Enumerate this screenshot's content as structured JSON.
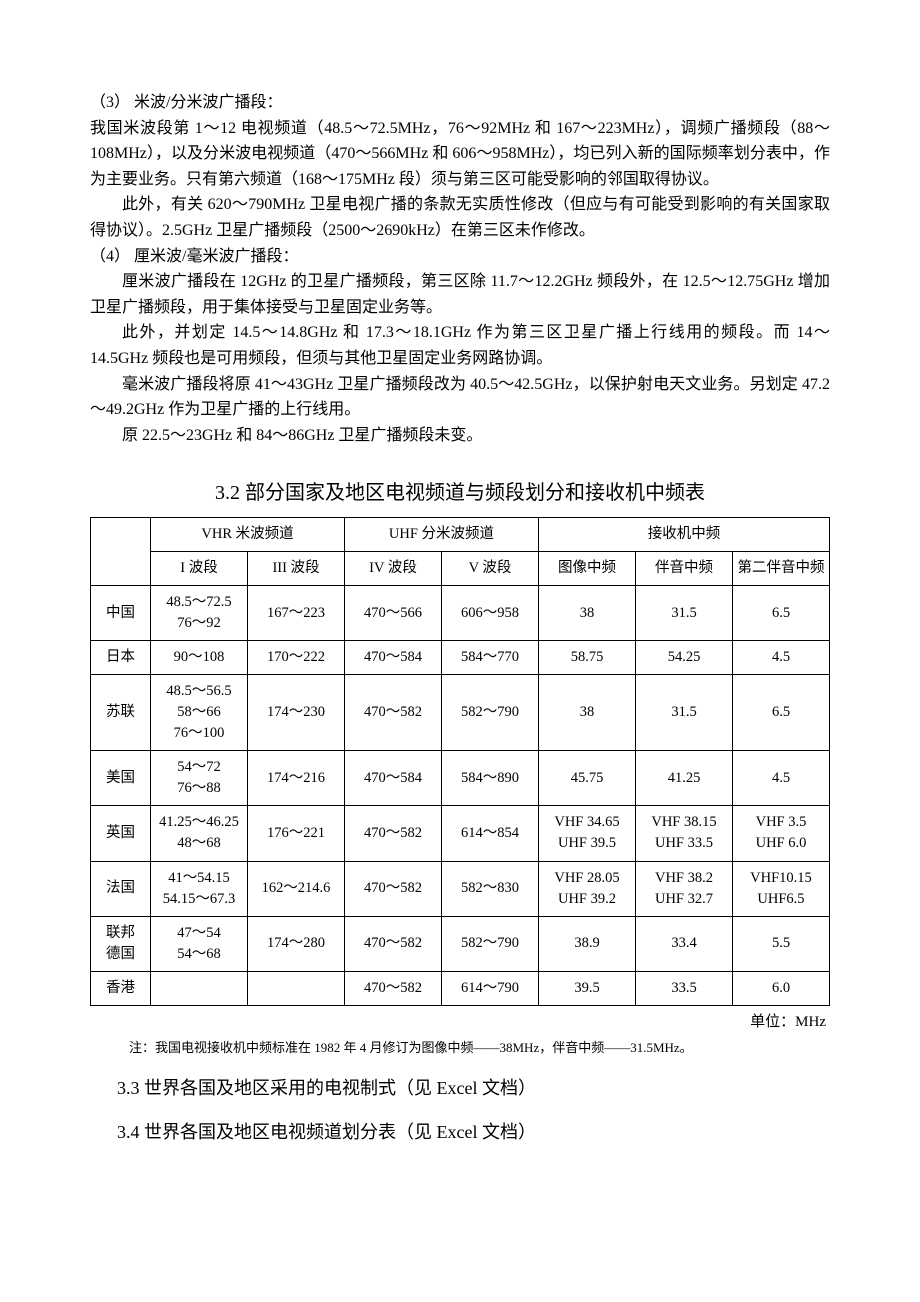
{
  "body": {
    "item3_label": "（3）  米波/分米波广播段：",
    "p1": "我国米波段第 1～12 电视频道（48.5～72.5MHz，76～92MHz 和 167～223MHz），调频广播频段（88～108MHz），以及分米波电视频道（470～566MHz 和 606～958MHz），均已列入新的国际频率划分表中，作为主要业务。只有第六频道（168～175MHz 段）须与第三区可能受影响的邻国取得协议。",
    "p2": "此外，有关 620～790MHz 卫星电视广播的条款无实质性修改（但应与有可能受到影响的有关国家取得协议）。2.5GHz 卫星广播频段（2500～2690kHz）在第三区未作修改。",
    "item4_label": "（4）  厘米波/毫米波广播段：",
    "p3": "厘米波广播段在 12GHz 的卫星广播频段，第三区除 11.7～12.2GHz 频段外，在 12.5～12.75GHz 增加卫星广播频段，用于集体接受与卫星固定业务等。",
    "p4": "此外，并划定 14.5～14.8GHz 和 17.3～18.1GHz 作为第三区卫星广播上行线用的频段。而 14～14.5GHz 频段也是可用频段，但须与其他卫星固定业务网路协调。",
    "p5": "毫米波广播段将原 41～43GHz 卫星广播频段改为 40.5～42.5GHz，以保护射电天文业务。另划定 47.2～49.2GHz 作为卫星广播的上行线用。",
    "p6": "原 22.5～23GHz 和 84～86GHz 卫星广播频段未变。"
  },
  "section32_title": "3.2   部分国家及地区电视频道与频段划分和接收机中频表",
  "table": {
    "header_group": {
      "vhr": "VHR    米波频道",
      "uhf": "UHF     分米波频道",
      "rxif": "接收机中频"
    },
    "header_sub": {
      "band1": "I   波段",
      "band3": "III  波段",
      "band4": "IV  波段",
      "band5": "V  波段",
      "img_if": "图像中频",
      "snd_if": "伴音中频",
      "snd2_if": "第二伴音中频"
    },
    "rows": [
      {
        "country": "中国",
        "b1": "48.5～72.5\n76～92",
        "b3": "167～223",
        "b4": "470～566",
        "b5": "606～958",
        "img": "38",
        "snd": "31.5",
        "snd2": "6.5"
      },
      {
        "country": "日本",
        "b1": "90～108",
        "b3": "170～222",
        "b4": "470～584",
        "b5": "584～770",
        "img": "58.75",
        "snd": "54.25",
        "snd2": "4.5"
      },
      {
        "country": "苏联",
        "b1": "48.5～56.5\n58～66\n76～100",
        "b3": "174～230",
        "b4": "470～582",
        "b5": "582～790",
        "img": "38",
        "snd": "31.5",
        "snd2": "6.5"
      },
      {
        "country": "美国",
        "b1": "54～72\n76～88",
        "b3": "174～216",
        "b4": "470～584",
        "b5": "584～890",
        "img": "45.75",
        "snd": "41.25",
        "snd2": "4.5"
      },
      {
        "country": "英国",
        "b1": "41.25～46.25\n48～68",
        "b3": "176～221",
        "b4": "470～582",
        "b5": "614～854",
        "img": "VHF 34.65\nUHF 39.5",
        "snd": "VHF 38.15\nUHF 33.5",
        "snd2": "VHF 3.5\nUHF 6.0"
      },
      {
        "country": "法国",
        "b1": "41～54.15\n54.15～67.3",
        "b3": "162～214.6",
        "b4": "470～582",
        "b5": "582～830",
        "img": "VHF 28.05\nUHF 39.2",
        "snd": "VHF 38.2\nUHF 32.7",
        "snd2": "VHF10.15\nUHF6.5"
      },
      {
        "country": "联邦\n德国",
        "b1": "47～54\n54～68",
        "b3": "174～280",
        "b4": "470～582",
        "b5": "582～790",
        "img": "38.9",
        "snd": "33.4",
        "snd2": "5.5"
      },
      {
        "country": "香港",
        "b1": "",
        "b3": "",
        "b4": "470～582",
        "b5": "614～790",
        "img": "39.5",
        "snd": "33.5",
        "snd2": "6.0"
      }
    ],
    "unit": "单位：MHz",
    "note": "注：我国电视接收机中频标准在 1982 年 4 月修订为图像中频——38MHz，伴音中频——31.5MHz。"
  },
  "section33_title": "3.3 世界各国及地区采用的电视制式（见 Excel 文档）",
  "section34_title": "3.4 世界各国及地区电视频道划分表（见 Excel 文档）"
}
